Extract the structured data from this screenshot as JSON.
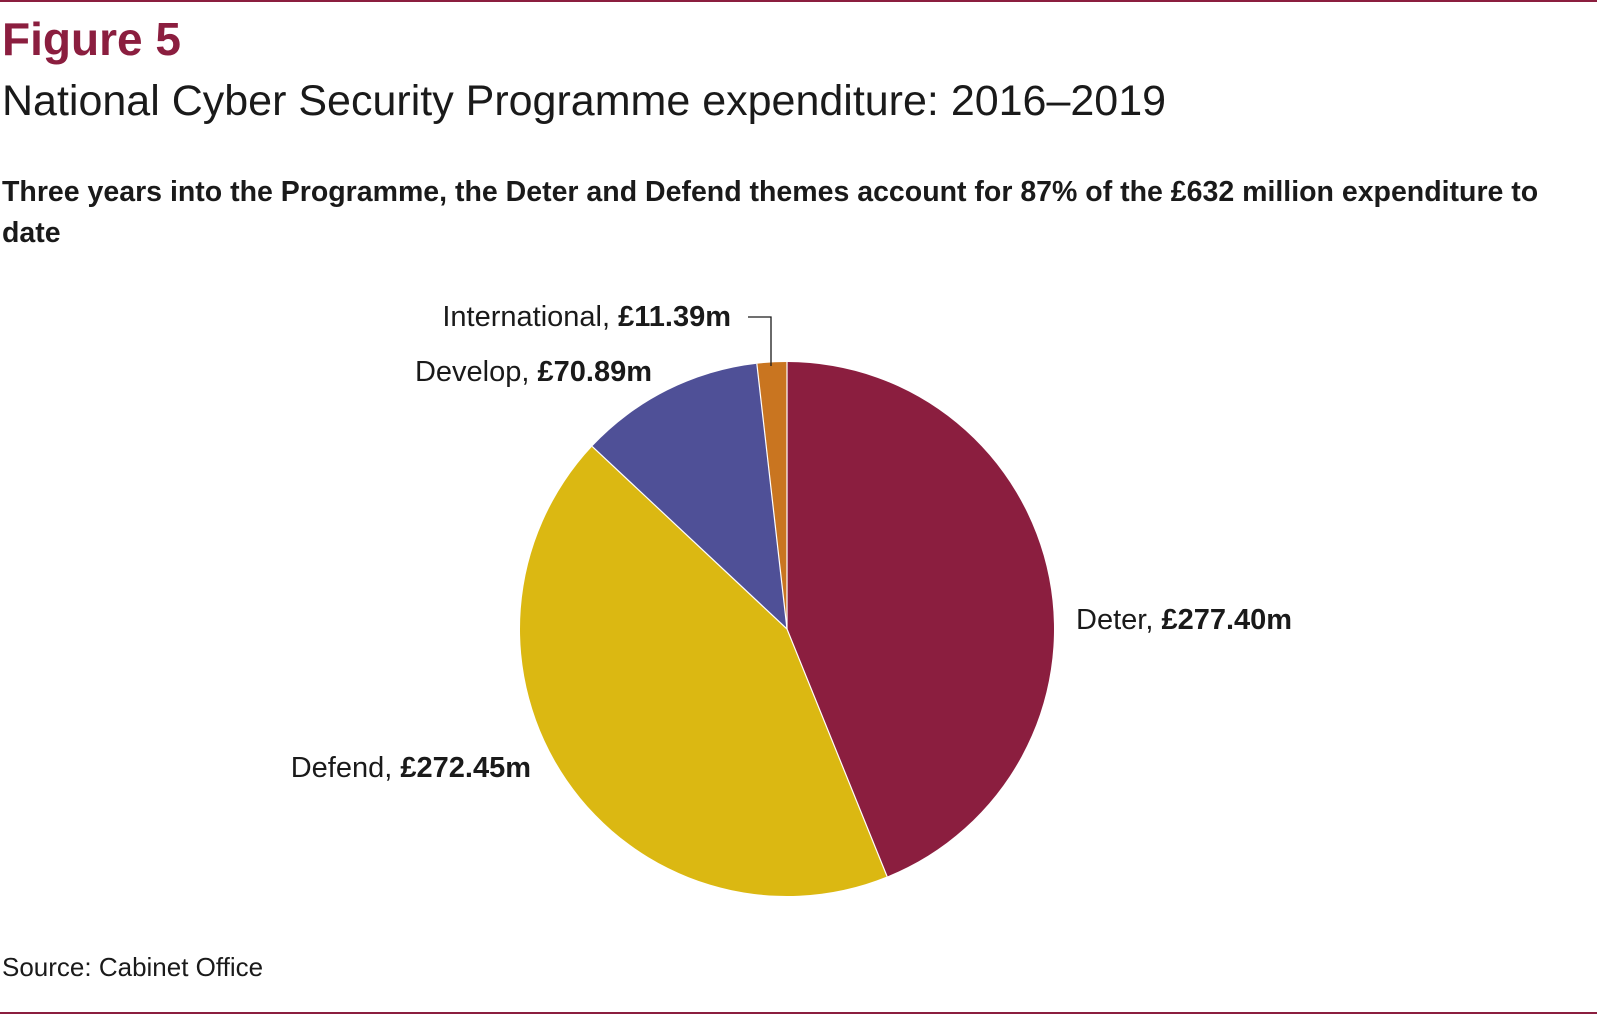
{
  "header": {
    "figure_label": "Figure 5",
    "title": "National Cyber Security Programme expenditure: 2016–2019",
    "subtitle": "Three years into the Programme, the Deter and Defend themes account for 87% of the £632 million expenditure to date"
  },
  "footer": {
    "source": "Source: Cabinet Office"
  },
  "colors": {
    "accent": "#8b1e3f",
    "deter": "#8b1e3f",
    "defend": "#dbb812",
    "develop": "#4f5097",
    "international": "#c97520"
  },
  "chart_data": {
    "type": "pie",
    "title": "",
    "start": "12 o'clock, clockwise",
    "slices": [
      {
        "label": "Deter",
        "value": 277.4,
        "value_text": "£277.40m",
        "color": "#8b1e3f"
      },
      {
        "label": "Defend",
        "value": 272.45,
        "value_text": "£272.45m",
        "color": "#dbb812"
      },
      {
        "label": "Develop",
        "value": 70.89,
        "value_text": "£70.89m",
        "color": "#4f5097"
      },
      {
        "label": "International",
        "value": 11.39,
        "value_text": "£11.39m",
        "color": "#c97520"
      }
    ]
  }
}
